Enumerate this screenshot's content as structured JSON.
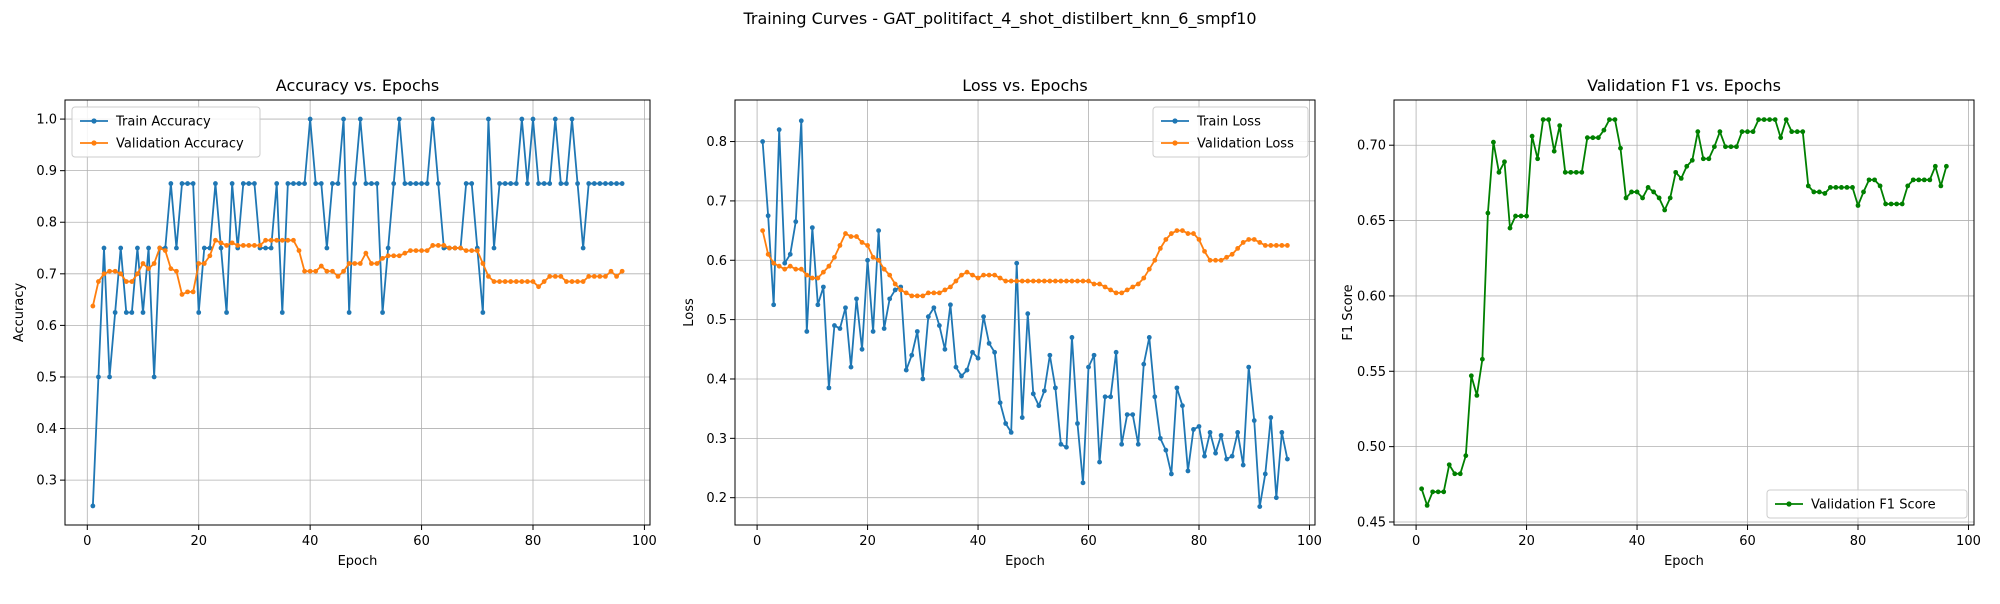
{
  "suptitle": "Training Curves - GAT_politifact_4_shot_distilbert_knn_6_smpf10",
  "colors": {
    "train": "#1f77b4",
    "validation": "#ff7f0e",
    "f1": "#008000",
    "grid": "#b0b0b0"
  },
  "chart_data": [
    {
      "type": "line",
      "title": "Accuracy vs. Epochs",
      "xlabel": "Epoch",
      "ylabel": "Accuracy",
      "xlim": [
        -4,
        101
      ],
      "ylim": [
        0.213,
        1.037
      ],
      "xticks": [
        0,
        20,
        40,
        60,
        80,
        100
      ],
      "yticks": [
        0.3,
        0.4,
        0.5,
        0.6,
        0.7,
        0.8,
        0.9,
        1.0
      ],
      "ytick_labels": [
        "0.3",
        "0.4",
        "0.5",
        "0.6",
        "0.7",
        "0.8",
        "0.9",
        "1.0"
      ],
      "grid": true,
      "legend_position": "upper-left",
      "series": [
        {
          "name": "Train Accuracy",
          "color": "#1f77b4",
          "values": [
            0.25,
            0.5,
            0.75,
            0.5,
            0.625,
            0.75,
            0.625,
            0.625,
            0.75,
            0.625,
            0.75,
            0.5,
            0.75,
            0.75,
            0.875,
            0.75,
            0.875,
            0.875,
            0.875,
            0.625,
            0.75,
            0.75,
            0.875,
            0.75,
            0.625,
            0.875,
            0.75,
            0.875,
            0.875,
            0.875,
            0.75,
            0.75,
            0.75,
            0.875,
            0.625,
            0.875,
            0.875,
            0.875,
            0.875,
            1.0,
            0.875,
            0.875,
            0.75,
            0.875,
            0.875,
            1.0,
            0.625,
            0.875,
            1.0,
            0.875,
            0.875,
            0.875,
            0.625,
            0.75,
            0.875,
            1.0,
            0.875,
            0.875,
            0.875,
            0.875,
            0.875,
            1.0,
            0.875,
            0.75,
            0.75,
            0.75,
            0.75,
            0.875,
            0.875,
            0.75,
            0.625,
            1.0,
            0.75,
            0.875,
            0.875,
            0.875,
            0.875,
            1.0,
            0.875,
            1.0,
            0.875,
            0.875,
            0.875,
            1.0,
            0.875,
            0.875,
            1.0,
            0.875,
            0.75,
            0.875,
            0.875,
            0.875,
            0.875,
            0.875,
            0.875,
            0.875
          ]
        },
        {
          "name": "Validation Accuracy",
          "color": "#ff7f0e",
          "values": [
            0.6375,
            0.685,
            0.7,
            0.705,
            0.705,
            0.7,
            0.685,
            0.685,
            0.7,
            0.72,
            0.71,
            0.72,
            0.75,
            0.745,
            0.71,
            0.705,
            0.66,
            0.665,
            0.665,
            0.72,
            0.72,
            0.735,
            0.765,
            0.76,
            0.755,
            0.76,
            0.755,
            0.755,
            0.755,
            0.755,
            0.755,
            0.765,
            0.765,
            0.765,
            0.765,
            0.765,
            0.765,
            0.745,
            0.705,
            0.705,
            0.705,
            0.715,
            0.705,
            0.705,
            0.695,
            0.705,
            0.72,
            0.72,
            0.72,
            0.74,
            0.72,
            0.72,
            0.73,
            0.735,
            0.735,
            0.735,
            0.74,
            0.745,
            0.745,
            0.745,
            0.745,
            0.755,
            0.755,
            0.755,
            0.75,
            0.75,
            0.75,
            0.745,
            0.745,
            0.745,
            0.72,
            0.695,
            0.685,
            0.685,
            0.685,
            0.685,
            0.685,
            0.685,
            0.685,
            0.685,
            0.675,
            0.685,
            0.695,
            0.695,
            0.695,
            0.685,
            0.685,
            0.685,
            0.685,
            0.695,
            0.695,
            0.695,
            0.695,
            0.705,
            0.695,
            0.705
          ]
        }
      ]
    },
    {
      "type": "line",
      "title": "Loss vs. Epochs",
      "xlabel": "Epoch",
      "ylabel": "Loss",
      "xlim": [
        -4,
        101
      ],
      "ylim": [
        0.154,
        0.87
      ],
      "xticks": [
        0,
        20,
        40,
        60,
        80,
        100
      ],
      "yticks": [
        0.2,
        0.3,
        0.4,
        0.5,
        0.6,
        0.7,
        0.8
      ],
      "ytick_labels": [
        "0.2",
        "0.3",
        "0.4",
        "0.5",
        "0.6",
        "0.7",
        "0.8"
      ],
      "grid": true,
      "legend_position": "upper-right",
      "series": [
        {
          "name": "Train Loss",
          "color": "#1f77b4",
          "values": [
            0.8,
            0.675,
            0.525,
            0.82,
            0.595,
            0.61,
            0.665,
            0.835,
            0.48,
            0.655,
            0.525,
            0.555,
            0.385,
            0.49,
            0.485,
            0.52,
            0.42,
            0.535,
            0.45,
            0.6,
            0.48,
            0.65,
            0.485,
            0.535,
            0.55,
            0.555,
            0.415,
            0.44,
            0.48,
            0.4,
            0.505,
            0.52,
            0.49,
            0.45,
            0.525,
            0.42,
            0.405,
            0.415,
            0.445,
            0.435,
            0.505,
            0.46,
            0.445,
            0.36,
            0.325,
            0.31,
            0.595,
            0.335,
            0.51,
            0.375,
            0.355,
            0.38,
            0.44,
            0.385,
            0.29,
            0.285,
            0.47,
            0.325,
            0.225,
            0.42,
            0.44,
            0.26,
            0.37,
            0.37,
            0.445,
            0.29,
            0.34,
            0.34,
            0.29,
            0.425,
            0.47,
            0.37,
            0.3,
            0.28,
            0.24,
            0.385,
            0.355,
            0.245,
            0.315,
            0.32,
            0.27,
            0.31,
            0.275,
            0.305,
            0.265,
            0.27,
            0.31,
            0.255,
            0.42,
            0.33,
            0.185,
            0.24,
            0.335,
            0.2,
            0.31,
            0.265
          ]
        },
        {
          "name": "Validation Loss",
          "color": "#ff7f0e",
          "values": [
            0.65,
            0.61,
            0.595,
            0.59,
            0.585,
            0.59,
            0.585,
            0.585,
            0.575,
            0.57,
            0.57,
            0.58,
            0.59,
            0.605,
            0.625,
            0.645,
            0.64,
            0.64,
            0.63,
            0.625,
            0.605,
            0.6,
            0.585,
            0.575,
            0.56,
            0.55,
            0.545,
            0.54,
            0.54,
            0.54,
            0.545,
            0.545,
            0.545,
            0.55,
            0.555,
            0.565,
            0.575,
            0.58,
            0.575,
            0.57,
            0.575,
            0.575,
            0.575,
            0.57,
            0.565,
            0.565,
            0.565,
            0.565,
            0.565,
            0.565,
            0.565,
            0.565,
            0.565,
            0.565,
            0.565,
            0.565,
            0.565,
            0.565,
            0.565,
            0.565,
            0.56,
            0.56,
            0.555,
            0.55,
            0.545,
            0.545,
            0.55,
            0.555,
            0.56,
            0.57,
            0.585,
            0.6,
            0.62,
            0.635,
            0.645,
            0.65,
            0.65,
            0.645,
            0.645,
            0.635,
            0.615,
            0.6,
            0.6,
            0.6,
            0.605,
            0.61,
            0.62,
            0.63,
            0.635,
            0.635,
            0.63,
            0.625,
            0.625,
            0.625,
            0.625,
            0.625
          ]
        }
      ]
    },
    {
      "type": "line",
      "title": "Validation F1 vs. Epochs",
      "xlabel": "Epoch",
      "ylabel": "F1 Score",
      "xlim": [
        -4,
        101
      ],
      "ylim": [
        0.448,
        0.73
      ],
      "xticks": [
        0,
        20,
        40,
        60,
        80,
        100
      ],
      "yticks": [
        0.45,
        0.5,
        0.55,
        0.6,
        0.65,
        0.7
      ],
      "ytick_labels": [
        "0.45",
        "0.50",
        "0.55",
        "0.60",
        "0.65",
        "0.70"
      ],
      "grid": true,
      "legend_position": "lower-right",
      "series": [
        {
          "name": "Validation F1 Score",
          "color": "#008000",
          "values": [
            0.472,
            0.461,
            0.47,
            0.47,
            0.47,
            0.488,
            0.482,
            0.482,
            0.494,
            0.547,
            0.534,
            0.558,
            0.655,
            0.702,
            0.682,
            0.689,
            0.645,
            0.653,
            0.653,
            0.653,
            0.706,
            0.691,
            0.717,
            0.717,
            0.696,
            0.713,
            0.682,
            0.682,
            0.682,
            0.682,
            0.705,
            0.705,
            0.705,
            0.71,
            0.717,
            0.717,
            0.698,
            0.665,
            0.669,
            0.669,
            0.665,
            0.672,
            0.669,
            0.665,
            0.657,
            0.665,
            0.682,
            0.678,
            0.686,
            0.69,
            0.709,
            0.691,
            0.691,
            0.699,
            0.709,
            0.699,
            0.699,
            0.699,
            0.709,
            0.709,
            0.709,
            0.717,
            0.717,
            0.717,
            0.717,
            0.705,
            0.717,
            0.709,
            0.709,
            0.709,
            0.673,
            0.669,
            0.669,
            0.668,
            0.672,
            0.672,
            0.672,
            0.672,
            0.672,
            0.66,
            0.669,
            0.677,
            0.677,
            0.673,
            0.661,
            0.661,
            0.661,
            0.661,
            0.673,
            0.677,
            0.677,
            0.677,
            0.677,
            0.686,
            0.673,
            0.686
          ]
        }
      ]
    }
  ]
}
